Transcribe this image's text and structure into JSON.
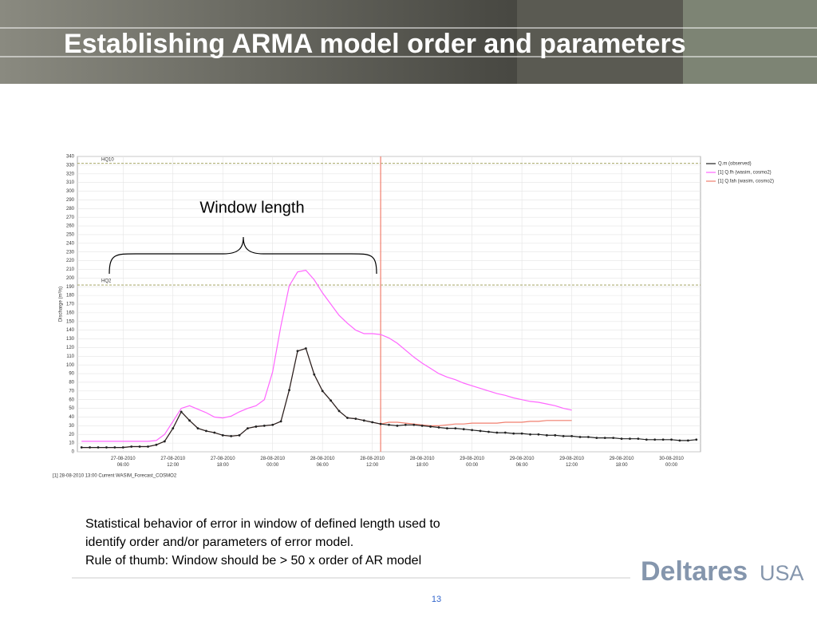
{
  "slide": {
    "title": "Establishing ARMA model order and parameters",
    "body": [
      "Statistical behavior of error in window of defined length used to",
      "identify order and/or parameters of error model.",
      "Rule of thumb: Window should be > 50 x order of AR model"
    ],
    "logo": "Deltares",
    "logo_suffix": "USA",
    "page_number": "13"
  },
  "chart_data": {
    "type": "line",
    "annotation": "Window length",
    "note": "[1] 28-08-2010 13:00 Current WASIM_Forecast_COSMO2",
    "y_label": "Discharge (m³/s)",
    "forecast_time": "28-08-2010 13:00",
    "reference_lines": [
      {
        "label": "HQ10",
        "value": 332
      },
      {
        "label": "HQ2",
        "value": 192
      }
    ],
    "x": [
      "27-08-2010 01:00",
      "27-08-2010 02:00",
      "27-08-2010 03:00",
      "27-08-2010 04:00",
      "27-08-2010 05:00",
      "27-08-2010 06:00",
      "27-08-2010 07:00",
      "27-08-2010 08:00",
      "27-08-2010 09:00",
      "27-08-2010 10:00",
      "27-08-2010 11:00",
      "27-08-2010 12:00",
      "27-08-2010 13:00",
      "27-08-2010 14:00",
      "27-08-2010 15:00",
      "27-08-2010 16:00",
      "27-08-2010 17:00",
      "27-08-2010 18:00",
      "27-08-2010 19:00",
      "27-08-2010 20:00",
      "27-08-2010 21:00",
      "27-08-2010 22:00",
      "27-08-2010 23:00",
      "28-08-2010 00:00",
      "28-08-2010 01:00",
      "28-08-2010 02:00",
      "28-08-2010 03:00",
      "28-08-2010 04:00",
      "28-08-2010 05:00",
      "28-08-2010 06:00",
      "28-08-2010 07:00",
      "28-08-2010 08:00",
      "28-08-2010 09:00",
      "28-08-2010 10:00",
      "28-08-2010 11:00",
      "28-08-2010 12:00",
      "28-08-2010 13:00",
      "28-08-2010 14:00",
      "28-08-2010 15:00",
      "28-08-2010 16:00",
      "28-08-2010 17:00",
      "28-08-2010 18:00",
      "28-08-2010 19:00",
      "28-08-2010 20:00",
      "28-08-2010 21:00",
      "28-08-2010 22:00",
      "28-08-2010 23:00",
      "29-08-2010 00:00",
      "29-08-2010 01:00",
      "29-08-2010 02:00",
      "29-08-2010 03:00",
      "29-08-2010 04:00",
      "29-08-2010 05:00",
      "29-08-2010 06:00",
      "29-08-2010 07:00",
      "29-08-2010 08:00",
      "29-08-2010 09:00",
      "29-08-2010 10:00",
      "29-08-2010 11:00",
      "29-08-2010 12:00",
      "29-08-2010 13:00",
      "29-08-2010 14:00",
      "29-08-2010 15:00",
      "29-08-2010 16:00",
      "29-08-2010 17:00",
      "29-08-2010 18:00",
      "29-08-2010 19:00",
      "29-08-2010 20:00",
      "29-08-2010 21:00",
      "29-08-2010 22:00",
      "29-08-2010 23:00",
      "30-08-2010 00:00",
      "30-08-2010 01:00",
      "30-08-2010 02:00",
      "30-08-2010 03:00"
    ],
    "series": [
      {
        "name": "Q.m (observed)",
        "color": "#222222",
        "markers": true,
        "values": [
          5,
          5,
          5,
          5,
          5,
          5,
          6,
          6,
          6,
          8,
          12,
          27,
          46,
          36,
          27,
          24,
          22,
          19,
          18,
          19,
          27,
          29,
          30,
          31,
          35,
          71,
          116,
          119,
          89,
          70,
          59,
          47,
          39,
          38,
          36,
          34,
          32,
          31,
          30,
          31,
          31,
          30,
          29,
          28,
          27,
          27,
          26,
          25,
          24,
          23,
          22,
          22,
          21,
          21,
          20,
          20,
          19,
          19,
          18,
          18,
          17,
          17,
          16,
          16,
          16,
          15,
          15,
          15,
          14,
          14,
          14,
          14,
          13,
          13,
          14
        ]
      },
      {
        "name": "[1] Q.fh  (wasim, cosmo2)",
        "color": "#ff66ff",
        "markers": false,
        "values": [
          12,
          12,
          12,
          12,
          12,
          12,
          12,
          12,
          12,
          13,
          20,
          35,
          50,
          53,
          49,
          45,
          40,
          39,
          41,
          46,
          50,
          53,
          60,
          92,
          145,
          191,
          207,
          209,
          198,
          183,
          170,
          157,
          148,
          140,
          136,
          136,
          135,
          131,
          125,
          117,
          109,
          102,
          96,
          90,
          86,
          83,
          79,
          76,
          73,
          70,
          67,
          65,
          62,
          60,
          58,
          57,
          55,
          53,
          50,
          48,
          null,
          null,
          null,
          null,
          null,
          null,
          null,
          null,
          null,
          null,
          null,
          null,
          null,
          null,
          null
        ]
      },
      {
        "name": "[1] Q.fah  (wasim, cosmo2)",
        "color": "#f07f6e",
        "markers": false,
        "values": [
          5,
          5,
          5,
          5,
          5,
          5,
          6,
          6,
          6,
          8,
          12,
          27,
          46,
          36,
          27,
          24,
          22,
          19,
          18,
          19,
          27,
          29,
          30,
          31,
          35,
          71,
          116,
          119,
          89,
          70,
          59,
          47,
          39,
          38,
          36,
          34,
          32,
          34,
          34,
          33,
          32,
          31,
          30,
          30,
          31,
          32,
          32,
          33,
          33,
          33,
          33,
          34,
          34,
          34,
          35,
          35,
          36,
          36,
          36,
          36,
          null,
          null,
          null,
          null,
          null,
          null,
          null,
          null,
          null,
          null,
          null,
          null,
          null,
          null,
          null
        ]
      }
    ],
    "xlim": [
      "27-08-2010 00:30",
      "30-08-2010 03:30"
    ],
    "xticks": [
      "27-08-2010 06:00",
      "27-08-2010 12:00",
      "27-08-2010 18:00",
      "28-08-2010 00:00",
      "28-08-2010 06:00",
      "28-08-2010 12:00",
      "28-08-2010 18:00",
      "29-08-2010 00:00",
      "29-08-2010 06:00",
      "29-08-2010 12:00",
      "29-08-2010 18:00",
      "30-08-2010 00:00"
    ],
    "ylim": [
      0,
      340
    ],
    "yticks": [
      0,
      10,
      20,
      30,
      40,
      50,
      60,
      70,
      80,
      90,
      100,
      110,
      120,
      130,
      140,
      150,
      160,
      170,
      180,
      190,
      200,
      210,
      220,
      230,
      240,
      250,
      260,
      270,
      280,
      290,
      300,
      310,
      320,
      330,
      340
    ],
    "grid": true,
    "legend": "right"
  }
}
